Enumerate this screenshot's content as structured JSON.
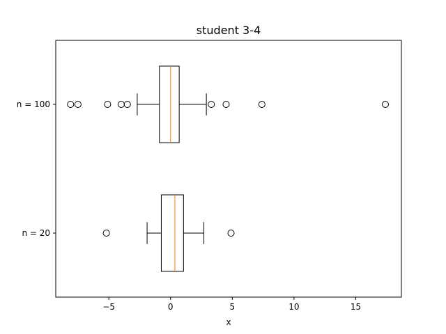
{
  "chart_data": {
    "type": "boxplot",
    "orientation": "horizontal",
    "title": "student 3-4",
    "xlabel": "x",
    "ylabel": "",
    "xlim": [
      -9.3,
      18.7
    ],
    "xticks": [
      -5,
      0,
      5,
      10,
      15
    ],
    "xtick_labels": [
      "−5",
      "0",
      "5",
      "10",
      "15"
    ],
    "categories": [
      "n = 100",
      "n = 20"
    ],
    "colors": {
      "box": "#000000",
      "median": "#ff7f0e",
      "flier": "#000000"
    },
    "boxes": [
      {
        "label": "n = 100",
        "whisker_low": -2.7,
        "q1": -0.9,
        "median": 0.0,
        "q3": 0.7,
        "whisker_high": 2.9,
        "fliers": [
          -8.1,
          -7.5,
          -5.1,
          -4.0,
          -3.5,
          3.3,
          4.5,
          7.4,
          17.4
        ]
      },
      {
        "label": "n = 20",
        "whisker_low": -1.9,
        "q1": -0.75,
        "median": 0.35,
        "q3": 1.05,
        "whisker_high": 2.7,
        "fliers": [
          -5.2,
          4.9
        ]
      }
    ]
  }
}
